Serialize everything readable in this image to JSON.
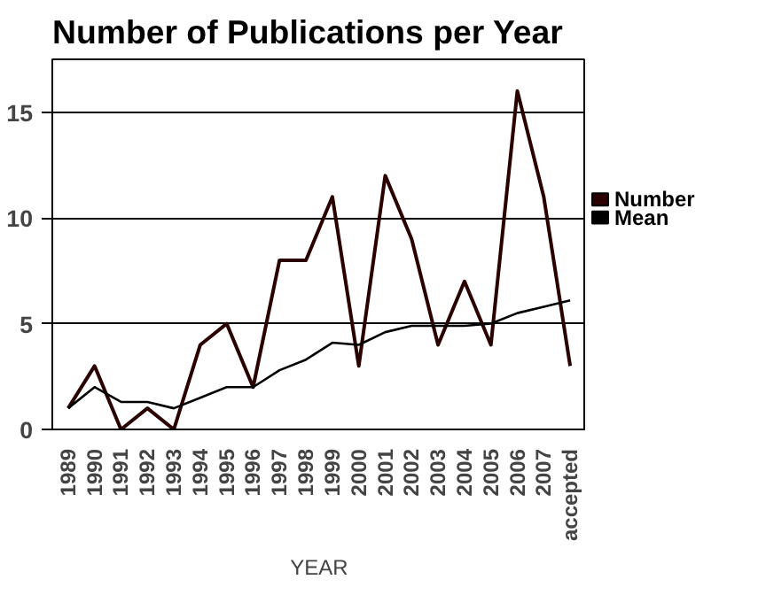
{
  "chart_data": {
    "type": "line",
    "title": "Number of Publications per Year",
    "xlabel": "YEAR",
    "categories": [
      "1989",
      "1990",
      "1991",
      "1992",
      "1993",
      "1994",
      "1995",
      "1996",
      "1997",
      "1998",
      "1999",
      "2000",
      "2001",
      "2002",
      "2003",
      "2004",
      "2005",
      "2006",
      "2007",
      "accepted"
    ],
    "series": [
      {
        "name": "Number",
        "color": "#2a0000",
        "values": [
          1,
          3,
          0,
          1,
          0,
          4,
          5,
          2,
          8,
          8,
          11,
          3,
          12,
          9,
          4,
          7,
          4,
          16,
          11,
          3
        ]
      },
      {
        "name": "Mean",
        "color": "#000000",
        "values": [
          1,
          2,
          1.3,
          1.3,
          1,
          1.5,
          2,
          2,
          2.8,
          3.3,
          4.1,
          4,
          4.6,
          4.9,
          4.9,
          4.9,
          5,
          5.5,
          5.8,
          6.1
        ]
      }
    ],
    "ylim": [
      0,
      17.5
    ],
    "yticks": [
      0,
      5,
      10,
      15
    ],
    "grid": "y",
    "legend": "right",
    "marker": "none"
  }
}
